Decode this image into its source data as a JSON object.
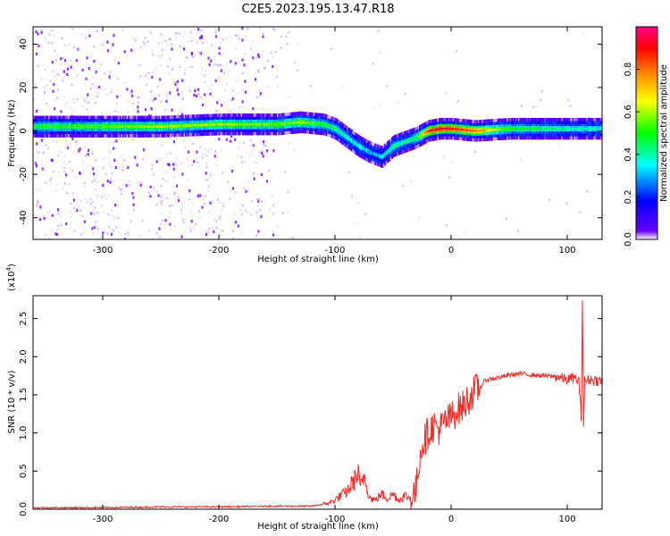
{
  "chart_data": [
    {
      "type": "heatmap",
      "title": "C2E5.2023.195.13.47.R18",
      "xlabel": "Height of straight line (km)",
      "ylabel": "Frequency (Hz)",
      "xlim": [
        -360,
        130
      ],
      "ylim": [
        -50,
        48
      ],
      "x_ticks": [
        -300,
        -200,
        -100,
        0,
        100
      ],
      "y_ticks": [
        -40,
        -20,
        0,
        20,
        40
      ],
      "colorbar": {
        "label": "Normalized spectral amplitude",
        "range": [
          0.0,
          1.0
        ],
        "ticks": [
          "0.0",
          "0.2",
          "0.4",
          "0.6",
          "0.8"
        ],
        "tick_values": [
          0.0,
          0.2,
          0.4,
          0.6,
          0.8
        ],
        "colors": [
          "#ffffff",
          "#6600ff",
          "#0000ff",
          "#00ffff",
          "#00ff00",
          "#ffff00",
          "#ff8800",
          "#ff0000",
          "#ff0088"
        ]
      },
      "ridge": {
        "height_km": [
          -360,
          -300,
          -250,
          -200,
          -150,
          -130,
          -110,
          -100,
          -90,
          -80,
          -70,
          -60,
          -50,
          -40,
          -30,
          -20,
          -10,
          0,
          20,
          50,
          80,
          100,
          130
        ],
        "frequency_hz": [
          2,
          2,
          2,
          3,
          3,
          4,
          3,
          1,
          -3,
          -7,
          -10,
          -12,
          -7,
          -5,
          -3,
          0,
          1,
          1,
          0,
          1,
          1,
          1,
          1
        ],
        "peak_amplitude": [
          0.5,
          0.55,
          0.6,
          0.6,
          0.55,
          0.6,
          0.5,
          0.45,
          0.4,
          0.4,
          0.3,
          0.35,
          0.45,
          0.4,
          0.5,
          0.9,
          0.95,
          0.9,
          0.8,
          0.5,
          0.45,
          0.4,
          0.4
        ]
      },
      "grid": false
    },
    {
      "type": "line",
      "xlabel": "Height of straight line (km)",
      "ylabel": "SNR (10 * v/v)",
      "y_scale_note": "(x10",
      "y_scale_exp": "4",
      "y_scale_close": ")",
      "xlim": [
        -360,
        130
      ],
      "ylim": [
        0,
        2.8
      ],
      "x_ticks": [
        -300,
        -200,
        -100,
        0,
        100
      ],
      "y_ticks": [
        0.0,
        0.5,
        1.0,
        1.5,
        2.0,
        2.5
      ],
      "y_tick_labels": [
        "0.0",
        "0.5",
        "1.0",
        "1.5",
        "2.0",
        "2.5"
      ],
      "color": "#e8302a",
      "series": [
        {
          "x": [
            -360,
            -300,
            -250,
            -200,
            -150,
            -120,
            -105,
            -100,
            -95,
            -90,
            -85,
            -80,
            -78,
            -75,
            -70,
            -65,
            -60,
            -55,
            -50,
            -45,
            -40,
            -35,
            -30,
            -28,
            -25,
            -20,
            -15,
            -10,
            -5,
            0,
            5,
            10,
            15,
            20,
            25,
            30,
            40,
            50,
            60,
            70,
            80,
            90,
            95,
            100,
            105,
            110,
            112,
            113,
            114,
            115,
            120,
            130
          ],
          "y": [
            0.02,
            0.02,
            0.03,
            0.03,
            0.04,
            0.04,
            0.08,
            0.12,
            0.18,
            0.22,
            0.35,
            0.45,
            0.28,
            0.45,
            0.15,
            0.12,
            0.2,
            0.14,
            0.2,
            0.12,
            0.18,
            0.14,
            0.25,
            0.6,
            0.85,
            1.0,
            1.1,
            1.05,
            1.15,
            1.2,
            1.3,
            1.35,
            1.45,
            1.55,
            1.6,
            1.7,
            1.72,
            1.76,
            1.78,
            1.76,
            1.75,
            1.74,
            1.72,
            1.7,
            1.72,
            1.68,
            1.2,
            2.75,
            1.1,
            1.68,
            1.7,
            1.68
          ]
        }
      ],
      "grid": false
    }
  ]
}
